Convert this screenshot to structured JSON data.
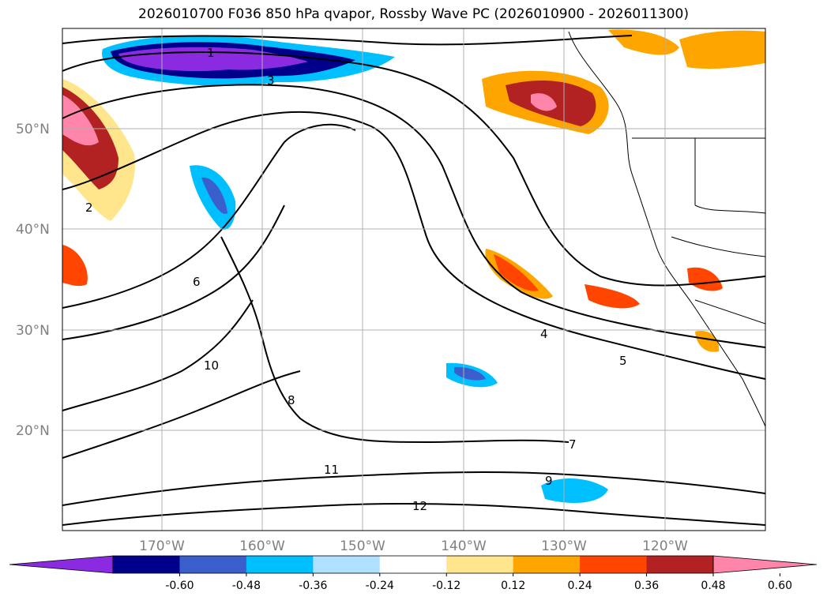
{
  "title": "2026010700 F036 850 hPa qvapor, Rossby Wave PC (2026010900 - 2026011300)",
  "map": {
    "lat_labels": [
      "50°N",
      "40°N",
      "30°N",
      "20°N"
    ],
    "lon_labels": [
      "170°W",
      "160°W",
      "150°W",
      "140°W",
      "130°W",
      "120°W"
    ],
    "contour_labels": [
      "1",
      "2",
      "3",
      "4",
      "5",
      "6",
      "7",
      "8",
      "9",
      "10",
      "11",
      "12"
    ]
  },
  "colorbar": {
    "colors": [
      "#8a2be2",
      "#00008b",
      "#3a5fcd",
      "#00bfff",
      "#b0e0ff",
      "#ffffff",
      "#ffe68c",
      "#ffa500",
      "#ff4500",
      "#b22222",
      "#ff85aa"
    ],
    "ticks": [
      "-0.60",
      "-0.48",
      "-0.36",
      "-0.24",
      "-0.12",
      "0.12",
      "0.24",
      "0.36",
      "0.48",
      "0.60"
    ]
  }
}
